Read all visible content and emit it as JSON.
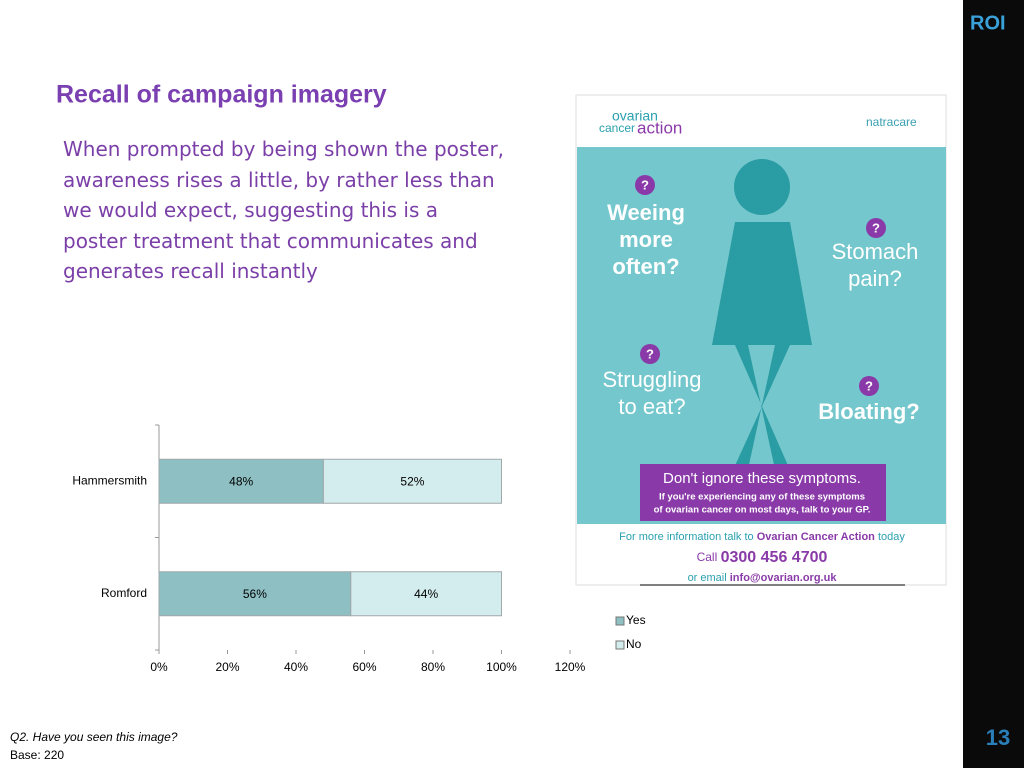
{
  "slide": {
    "title": "Recall of campaign imagery",
    "body": "When prompted by being shown the poster, awareness rises a little, by rather less than we would expect, suggesting this is a poster treatment that communicates and generates recall instantly",
    "question": "Q2. Have you seen this image?",
    "base": "Base: 220",
    "page_number": "13",
    "logo": "ROI"
  },
  "poster": {
    "brand": [
      "ovarian",
      "cancer",
      "action"
    ],
    "sponsor": "natracare",
    "question_mark": "?",
    "weeing": [
      "Weeing",
      "more",
      "often?"
    ],
    "stomach": [
      "Stomach",
      "pain?"
    ],
    "struggling": [
      "Struggling",
      "to eat?"
    ],
    "bloating": "Bloating?",
    "headline": "Don't ignore these symptoms.",
    "subline": [
      "If you're experiencing any of these symptoms",
      "of ovarian cancer on most days, talk to your GP."
    ],
    "info": [
      "For more information talk to ",
      "Ovarian Cancer Action",
      " today"
    ],
    "call": [
      "Call ",
      "0300 456 4700"
    ],
    "email": [
      "or email ",
      "info@ovarian.org.uk"
    ]
  },
  "chart_data": {
    "type": "stacked-bar-horizontal",
    "categories": [
      "Hammersmith",
      "Romford"
    ],
    "series": [
      {
        "name": "Yes",
        "color": "#8dbfc3",
        "values": [
          48,
          56
        ],
        "value_labels": [
          "48%",
          "56%"
        ]
      },
      {
        "name": "No",
        "color": "#d3eced",
        "values": [
          52,
          44
        ],
        "value_labels": [
          "52%",
          "44%"
        ]
      }
    ],
    "xlim": [
      0,
      120
    ],
    "xticks": [
      {
        "value": 0,
        "label": "0%"
      },
      {
        "value": 20,
        "label": "20%"
      },
      {
        "value": 40,
        "label": "40%"
      },
      {
        "value": 60,
        "label": "60%"
      },
      {
        "value": 80,
        "label": "80%"
      },
      {
        "value": 100,
        "label": "100%"
      },
      {
        "value": 120,
        "label": "120%"
      }
    ],
    "legend": "right"
  }
}
